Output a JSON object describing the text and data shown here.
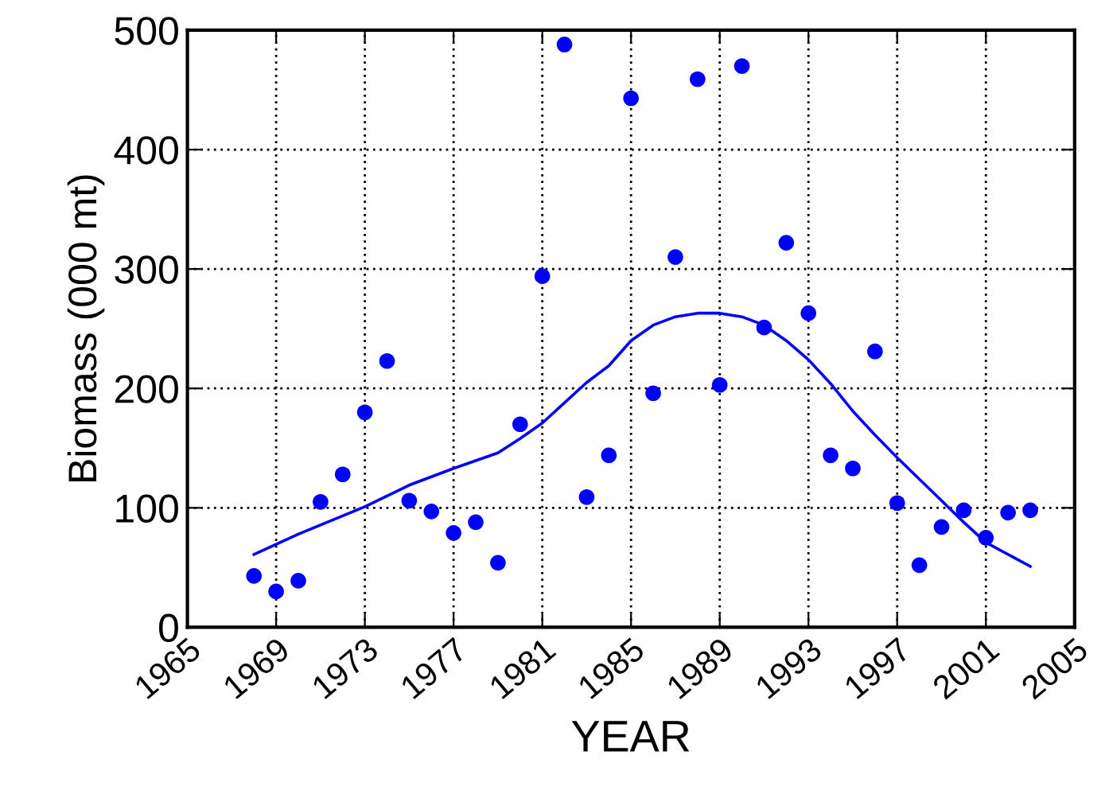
{
  "chart_data": {
    "type": "scatter",
    "xlabel": "YEAR",
    "ylabel": "Biomass (000 mt)",
    "x": [
      1968,
      1969,
      1970,
      1971,
      1972,
      1973,
      1974,
      1975,
      1976,
      1977,
      1978,
      1979,
      1980,
      1981,
      1982,
      1983,
      1984,
      1985,
      1986,
      1987,
      1988,
      1989,
      1990,
      1991,
      1992,
      1993,
      1994,
      1995,
      1996,
      1997,
      1998,
      1999,
      2000,
      2001,
      2002,
      2003
    ],
    "series": [
      {
        "color": "#0000ff",
        "marker": "circle",
        "values": [
          43,
          30,
          39,
          105,
          128,
          180,
          223,
          106,
          97,
          79,
          88,
          54,
          170,
          294,
          488,
          109,
          144,
          443,
          196,
          310,
          459,
          203,
          470,
          251,
          322,
          263,
          144,
          133,
          231,
          104,
          52,
          84,
          98,
          75,
          96,
          98
        ]
      },
      {
        "type": "line",
        "color": "#0000ff",
        "marker": "none",
        "line_style": "solid",
        "x": [
          1968,
          1970,
          1973,
          1975,
          1977,
          1979,
          1980,
          1981,
          1983,
          1984,
          1985,
          1986,
          1987,
          1988,
          1989,
          1990,
          1991,
          1992,
          1993,
          1994,
          1995,
          1996,
          1997,
          1998,
          1999,
          2000,
          2001,
          2003
        ],
        "values": [
          61,
          78,
          101,
          119,
          133,
          146,
          158,
          171,
          205,
          219,
          240,
          253,
          260,
          263,
          263,
          260,
          253,
          240,
          224,
          204,
          181,
          161,
          142,
          124,
          106,
          88,
          71,
          51
        ]
      }
    ],
    "xlim": [
      1965,
      2005
    ],
    "xticks": [
      1965,
      1969,
      1973,
      1977,
      1981,
      1985,
      1989,
      1993,
      1997,
      2001,
      2005
    ],
    "ylim": [
      0,
      500
    ],
    "yticks": [
      0,
      100,
      200,
      300,
      400,
      500
    ],
    "grid": true
  }
}
